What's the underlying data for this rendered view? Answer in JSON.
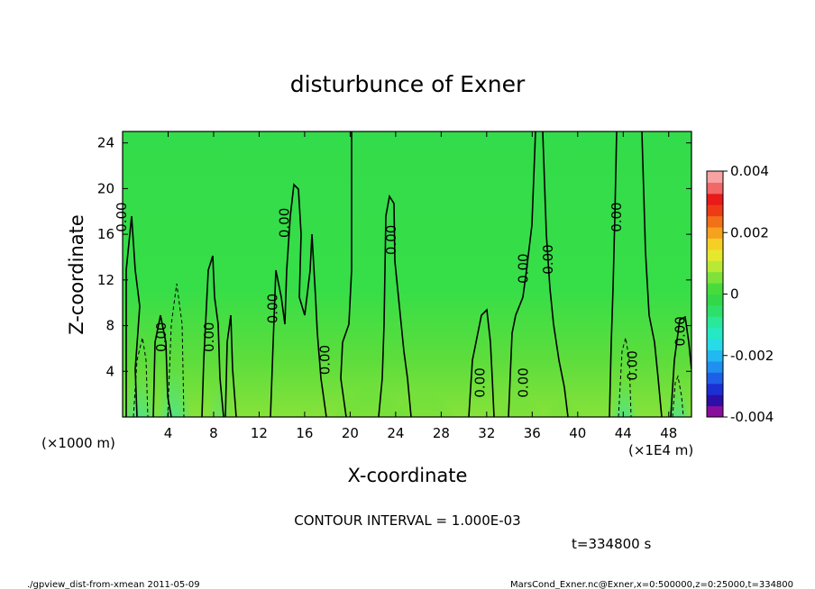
{
  "chart_data": {
    "type": "heatmap",
    "title": "disturbunce of Exner",
    "xlabel": "X-coordinate",
    "ylabel": "Z-coordinate",
    "x_unit_label": "(×1000 m)",
    "x_scale_label": "(×1E4 m)",
    "xlim": [
      0,
      50
    ],
    "ylim": [
      0,
      25
    ],
    "xticks": [
      4,
      8,
      12,
      16,
      20,
      24,
      28,
      32,
      36,
      40,
      44,
      48
    ],
    "yticks": [
      4,
      8,
      12,
      16,
      20,
      24
    ],
    "colorbar": {
      "range": [
        -0.004,
        0.004
      ],
      "tick_labels": [
        "0.004",
        "0.002",
        "0",
        "-0.002",
        "-0.004"
      ],
      "tick_values": [
        0.004,
        0.002,
        0,
        -0.002,
        -0.004
      ],
      "colors": [
        "#8a0e9c",
        "#2b0fa8",
        "#1b2fd3",
        "#1f5fe8",
        "#1f8ff0",
        "#22b8f2",
        "#27dbe8",
        "#25e8c4",
        "#2ae89a",
        "#2ee06a",
        "#33d84a",
        "#47dc3c",
        "#7fe23a",
        "#b8ea35",
        "#e6e82e",
        "#f5cf25",
        "#f5a21e",
        "#f27018",
        "#ef3a16",
        "#e81a1a",
        "#f06868",
        "#f8a3a3"
      ]
    },
    "contour_labels": [
      {
        "text": "0.00",
        "x": 0.3,
        "z": 17.5
      },
      {
        "text": "0.00",
        "x": 3.8,
        "z": 7.0
      },
      {
        "text": "0.00",
        "x": 8.0,
        "z": 7.0
      },
      {
        "text": "0.00",
        "x": 13.6,
        "z": 9.5
      },
      {
        "text": "0.00",
        "x": 14.6,
        "z": 17.0
      },
      {
        "text": "0.00",
        "x": 18.2,
        "z": 5.0
      },
      {
        "text": "0.00",
        "x": 24.0,
        "z": 15.5
      },
      {
        "text": "0.00",
        "x": 31.8,
        "z": 3.0
      },
      {
        "text": "0.00",
        "x": 35.6,
        "z": 3.0
      },
      {
        "text": "0.00",
        "x": 35.6,
        "z": 13.0
      },
      {
        "text": "0.00",
        "x": 37.8,
        "z": 13.8
      },
      {
        "text": "0.00",
        "x": 43.8,
        "z": 17.5
      },
      {
        "text": "0.00",
        "x": 45.2,
        "z": 4.5
      },
      {
        "text": "0.00",
        "x": 49.4,
        "z": 7.5
      }
    ],
    "footer": {
      "contour_interval": "CONTOUR INTERVAL = 1.000E-03",
      "time": "t=334800 s",
      "script_name": "./gpview_dist-from-xmean   2011-05-09",
      "source": "MarsCond_Exner.nc@Exner,x=0:500000,z=0:25000,t=334800"
    }
  }
}
